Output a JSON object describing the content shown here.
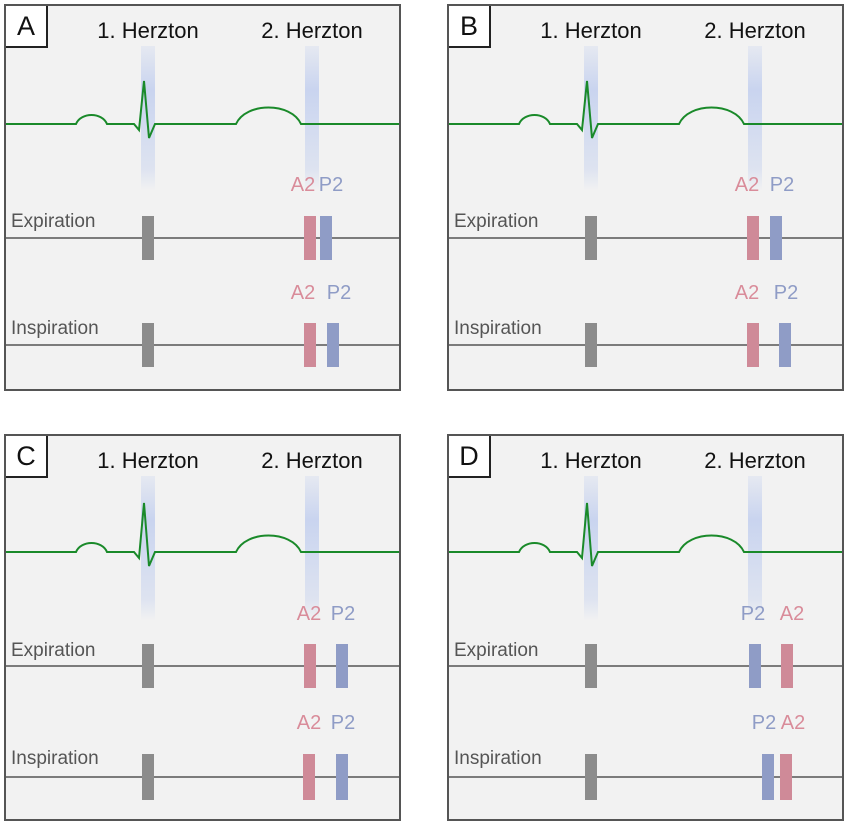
{
  "colors": {
    "ecg": "#1a8a2a",
    "s1": "#8c8c8c",
    "a2": "#cf8a98",
    "p2": "#8f9cc6",
    "a2_text": "#d98c9a",
    "p2_text": "#8f9cc6",
    "highlight": "#c9d4ef",
    "baseline": "#555555",
    "panel_bg": "#f2f2f2"
  },
  "labels": {
    "herzton1": "1. Herzton",
    "herzton2": "2. Herzton",
    "expiration": "Expiration",
    "inspiration": "Inspiration"
  },
  "panels": [
    {
      "id": "A",
      "expiration": [
        {
          "sound": "S1",
          "label": ""
        },
        {
          "sound": "A2",
          "label": "A2"
        },
        {
          "sound": "P2",
          "label": "P2"
        }
      ],
      "inspiration": [
        {
          "sound": "S1",
          "label": ""
        },
        {
          "sound": "A2",
          "label": "A2"
        },
        {
          "sound": "P2",
          "label": "P2"
        }
      ]
    },
    {
      "id": "B",
      "expiration": [
        {
          "sound": "S1",
          "label": ""
        },
        {
          "sound": "A2",
          "label": "A2"
        },
        {
          "sound": "P2",
          "label": "P2"
        }
      ],
      "inspiration": [
        {
          "sound": "S1",
          "label": ""
        },
        {
          "sound": "A2",
          "label": "A2"
        },
        {
          "sound": "P2",
          "label": "P2"
        }
      ]
    },
    {
      "id": "C",
      "expiration": [
        {
          "sound": "S1",
          "label": ""
        },
        {
          "sound": "A2",
          "label": "A2"
        },
        {
          "sound": "P2",
          "label": "P2"
        }
      ],
      "inspiration": [
        {
          "sound": "S1",
          "label": ""
        },
        {
          "sound": "A2",
          "label": "A2"
        },
        {
          "sound": "P2",
          "label": "P2"
        }
      ]
    },
    {
      "id": "D",
      "expiration": [
        {
          "sound": "S1",
          "label": ""
        },
        {
          "sound": "P2",
          "label": "P2"
        },
        {
          "sound": "A2",
          "label": "A2"
        }
      ],
      "inspiration": [
        {
          "sound": "S1",
          "label": ""
        },
        {
          "sound": "P2",
          "label": "P2"
        },
        {
          "sound": "A2",
          "label": "A2"
        }
      ]
    }
  ]
}
